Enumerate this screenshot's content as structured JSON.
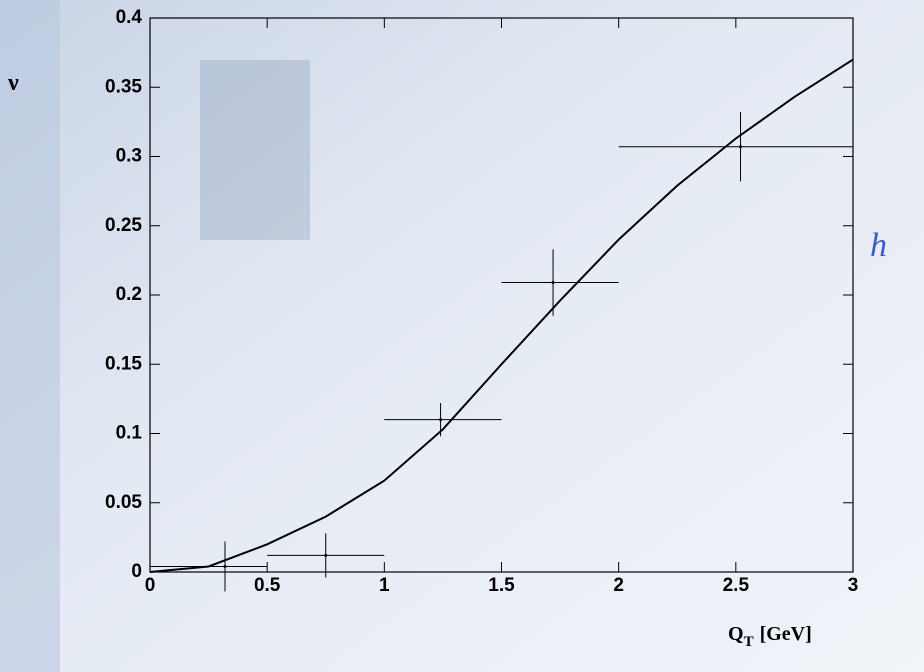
{
  "chart_data": {
    "type": "scatter",
    "ylabel": "ν",
    "xlabel": [
      "Q",
      "T",
      "[GeV]"
    ],
    "annotation": "h",
    "xlim": [
      0,
      3
    ],
    "xticks": [
      0,
      0.5,
      1,
      1.5,
      2,
      2.5,
      3
    ],
    "ylim": [
      0,
      0.4
    ],
    "yticks": [
      0,
      0.05,
      0.1,
      0.15,
      0.2,
      0.25,
      0.3,
      0.35,
      0.4
    ],
    "color": "#000000",
    "series": [
      {
        "x": [
          0.32,
          0.75,
          1.24,
          1.72,
          2.52
        ],
        "values": [
          0.004,
          0.012,
          0.11,
          0.209,
          0.307
        ],
        "yerr": [
          0.018,
          0.016,
          0.012,
          0.024,
          0.025
        ],
        "x_low": [
          0,
          0.5,
          1,
          1.5,
          2
        ],
        "x_high": [
          0.5,
          1,
          1.5,
          2,
          3
        ]
      }
    ],
    "curve": {
      "x": [
        0,
        0.25,
        0.5,
        0.75,
        1,
        1.25,
        1.5,
        1.75,
        2,
        2.25,
        2.5,
        2.75,
        3
      ],
      "values": [
        0,
        0.004,
        0.02,
        0.04,
        0.066,
        0.103,
        0.15,
        0.196,
        0.24,
        0.279,
        0.313,
        0.343,
        0.37
      ]
    }
  }
}
